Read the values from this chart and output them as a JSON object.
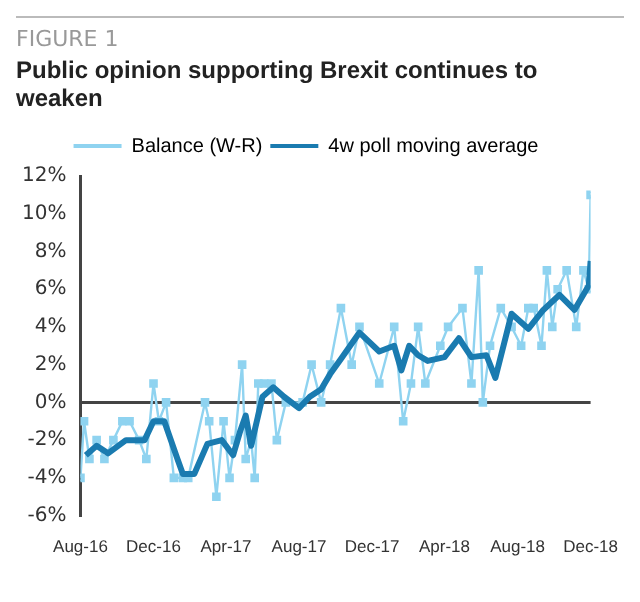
{
  "chart_data": {
    "type": "line",
    "title": "Public opinion supporting Brexit continues to weaken",
    "annotations": [
      "FIGURE 1"
    ],
    "xlim": [
      "2016-08-01",
      "2018-12-01"
    ],
    "xticks": [
      {
        "value": "2016-08-01",
        "label": "Aug-16"
      },
      {
        "value": "2016-12-01",
        "label": "Dec-16"
      },
      {
        "value": "2017-04-01",
        "label": "Apr-17"
      },
      {
        "value": "2017-08-01",
        "label": "Aug-17"
      },
      {
        "value": "2017-12-01",
        "label": "Dec-17"
      },
      {
        "value": "2018-04-01",
        "label": "Apr-18"
      },
      {
        "value": "2018-08-01",
        "label": "Aug-18"
      },
      {
        "value": "2018-12-01",
        "label": "Dec-18"
      }
    ],
    "ylim": [
      -6,
      12
    ],
    "yticks": [
      {
        "value": -6,
        "label": "-6%"
      },
      {
        "value": -4,
        "label": "-4%"
      },
      {
        "value": -2,
        "label": "-2%"
      },
      {
        "value": 0,
        "label": "0%"
      },
      {
        "value": 2,
        "label": "2%"
      },
      {
        "value": 4,
        "label": "4%"
      },
      {
        "value": 6,
        "label": "6%"
      },
      {
        "value": 8,
        "label": "8%"
      },
      {
        "value": 10,
        "label": "10%"
      },
      {
        "value": 12,
        "label": "12%"
      }
    ],
    "grid": false,
    "legend": "top",
    "ref_lines": [
      {
        "axis": "y",
        "value": 0,
        "color": "#444444"
      }
    ],
    "series": [
      {
        "name": "Balance (W-R)",
        "color": "#8fd3f0",
        "marker": "square",
        "x": [
          "2016-08-01",
          "2016-08-07",
          "2016-08-16",
          "2016-08-28",
          "2016-09-10",
          "2016-09-25",
          "2016-10-10",
          "2016-10-22",
          "2016-11-07",
          "2016-11-19",
          "2016-12-01",
          "2016-12-10",
          "2016-12-22",
          "2017-01-04",
          "2017-01-19",
          "2017-01-28",
          "2017-02-25",
          "2017-03-04",
          "2017-03-16",
          "2017-03-28",
          "2017-04-07",
          "2017-04-16",
          "2017-04-28",
          "2017-05-04",
          "2017-05-13",
          "2017-05-19",
          "2017-05-25",
          "2017-06-04",
          "2017-06-16",
          "2017-06-25",
          "2017-07-10",
          "2017-08-07",
          "2017-08-22",
          "2017-09-07",
          "2017-09-22",
          "2017-10-10",
          "2017-10-28",
          "2017-11-10",
          "2017-12-13",
          "2018-01-07",
          "2018-01-22",
          "2018-02-04",
          "2018-02-16",
          "2018-02-28",
          "2018-03-25",
          "2018-04-07",
          "2018-05-01",
          "2018-05-16",
          "2018-05-28",
          "2018-06-04",
          "2018-06-16",
          "2018-07-04",
          "2018-07-22",
          "2018-08-07",
          "2018-08-19",
          "2018-08-28",
          "2018-09-10",
          "2018-09-19",
          "2018-09-28",
          "2018-10-07",
          "2018-10-22",
          "2018-11-07",
          "2018-11-19",
          "2018-11-28",
          "2018-12-01"
        ],
        "values": [
          -4,
          -1,
          -3,
          -2,
          -3,
          -2,
          -1,
          -1,
          -2,
          -3,
          1,
          -1,
          0,
          -4,
          -4,
          -4,
          0,
          -1,
          -5,
          -1,
          -4,
          -2,
          2,
          -3,
          -2,
          -4,
          1,
          1,
          1,
          -2,
          0,
          0,
          2,
          0,
          2,
          5,
          2,
          4,
          1,
          4,
          -1,
          1,
          4,
          1,
          3,
          4,
          5,
          1,
          7,
          0,
          3,
          5,
          4,
          3,
          5,
          5,
          3,
          7,
          4,
          6,
          7,
          4,
          7,
          6,
          11
        ]
      },
      {
        "name": "4w poll moving average",
        "color": "#1a7bb0",
        "marker": "none",
        "x": [
          "2016-08-10",
          "2016-08-28",
          "2016-09-16",
          "2016-10-16",
          "2016-11-16",
          "2016-12-01",
          "2016-12-19",
          "2017-01-10",
          "2017-01-19",
          "2017-02-07",
          "2017-03-01",
          "2017-03-25",
          "2017-04-13",
          "2017-04-25",
          "2017-05-04",
          "2017-05-13",
          "2017-06-01",
          "2017-06-19",
          "2017-07-07",
          "2017-08-01",
          "2017-08-19",
          "2017-09-07",
          "2017-09-22",
          "2017-10-10",
          "2017-11-10",
          "2017-12-13",
          "2018-01-07",
          "2018-01-19",
          "2018-02-01",
          "2018-02-16",
          "2018-03-04",
          "2018-04-01",
          "2018-04-25",
          "2018-05-16",
          "2018-06-10",
          "2018-06-25",
          "2018-07-22",
          "2018-08-19",
          "2018-09-13",
          "2018-10-10",
          "2018-11-04",
          "2018-11-28",
          "2018-12-01"
        ],
        "values": [
          -2.8,
          -2.3,
          -2.7,
          -2,
          -2,
          -1,
          -1,
          -3,
          -3.8,
          -3.8,
          -2.2,
          -2,
          -2.8,
          -1.5,
          -0.7,
          -2.3,
          0.3,
          0.8,
          0.3,
          -0.3,
          0.3,
          0.7,
          1.5,
          2.3,
          3.7,
          2.7,
          3,
          1.7,
          3,
          2.5,
          2.2,
          2.4,
          3.4,
          2.4,
          2.5,
          1.3,
          4.7,
          3.9,
          4.9,
          5.7,
          4.9,
          6.2,
          7.5
        ]
      }
    ]
  }
}
